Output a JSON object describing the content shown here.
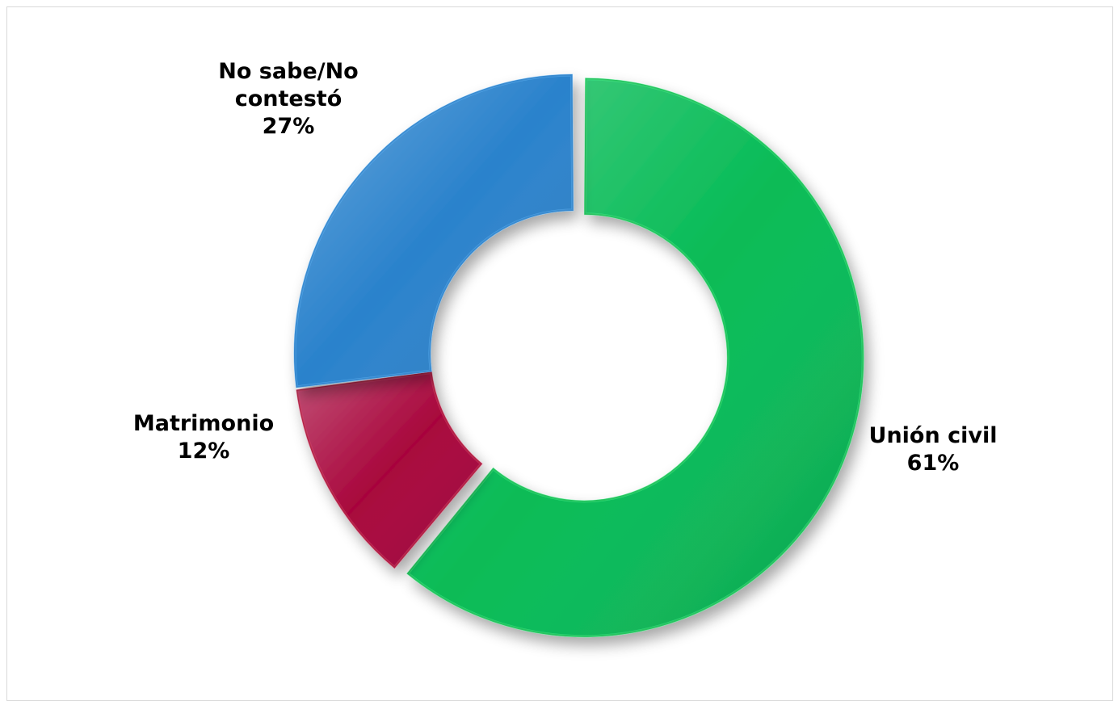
{
  "chart_data": {
    "type": "pie",
    "variant": "donut",
    "title": "",
    "slices": [
      {
        "label_lines": [
          "Unión civil"
        ],
        "percent_label": "61%",
        "value": 61,
        "color": "#07BB56",
        "exploded": true
      },
      {
        "label_lines": [
          "Matrimonio"
        ],
        "percent_label": "12%",
        "value": 12,
        "color": "#A8063C",
        "exploded": false
      },
      {
        "label_lines": [
          "No sabe/No",
          "contestó"
        ],
        "percent_label": "27%",
        "value": 27,
        "color": "#2A82CC",
        "exploded": false
      }
    ],
    "start_angle_deg": 0,
    "direction": "clockwise",
    "legend": "none",
    "data_labels": "outside"
  }
}
